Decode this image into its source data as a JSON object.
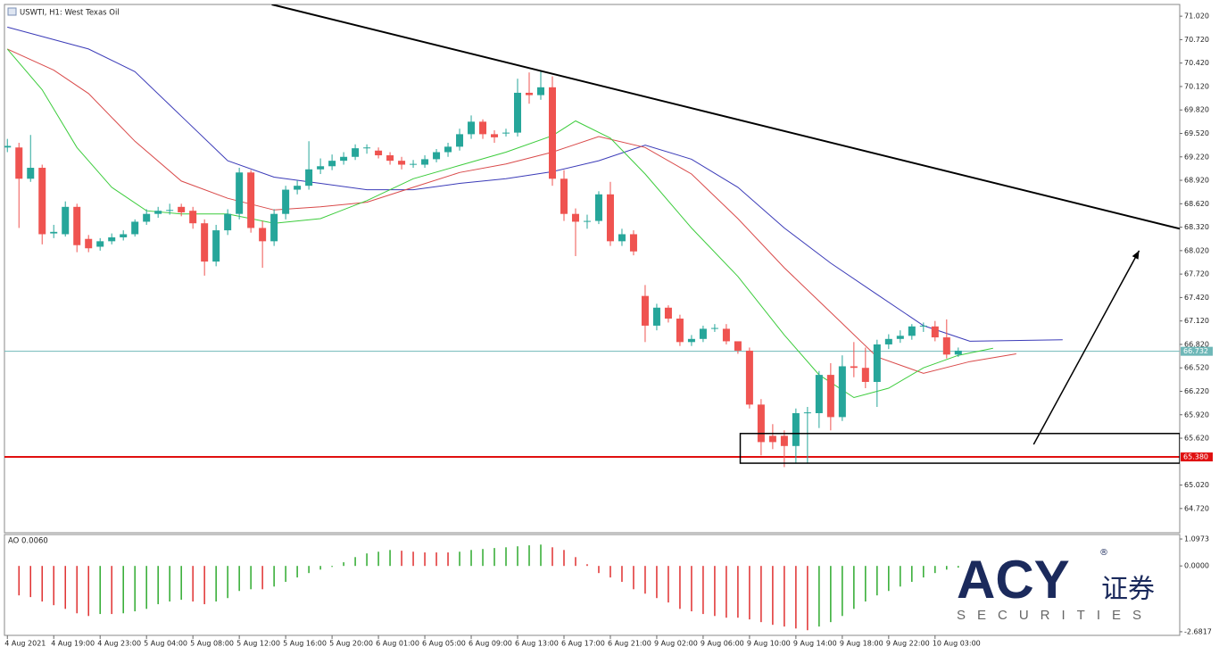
{
  "chart_data": [
    {
      "type": "candlestick",
      "title": "USWTI, H1: West Texas Oil",
      "up_color": "#26a69a",
      "down_color": "#ef5350",
      "xlim": [
        -0.25,
        101.1
      ],
      "ylim": [
        64.41,
        71.17
      ],
      "open": [
        69.34,
        69.34,
        68.94,
        69.08,
        68.24,
        68.23,
        68.58,
        68.17,
        68.07,
        68.14,
        68.19,
        68.23,
        68.39,
        68.49,
        68.53,
        68.58,
        68.53,
        68.37,
        67.88,
        68.28,
        68.49,
        69.02,
        68.31,
        68.14,
        68.49,
        68.8,
        68.85,
        69.06,
        69.1,
        69.17,
        69.22,
        69.33,
        69.3,
        69.24,
        69.17,
        69.12,
        69.12,
        69.19,
        69.28,
        69.35,
        69.51,
        69.67,
        69.51,
        69.52,
        69.53,
        70.04,
        70.01,
        70.11,
        68.94,
        68.49,
        68.39,
        68.4,
        68.74,
        68.14,
        68.23,
        67.44,
        67.06,
        67.29,
        67.15,
        66.85,
        66.89,
        67.02,
        67.02,
        66.86,
        66.74,
        66.05,
        65.65,
        65.65,
        65.52,
        65.94,
        65.94,
        66.43,
        65.89,
        66.54,
        66.52,
        66.34,
        66.82,
        66.89,
        66.93,
        67.05,
        67.05,
        66.91,
        66.69
      ],
      "high": [
        69.45,
        69.4,
        69.5,
        69.12,
        68.35,
        68.65,
        68.62,
        68.22,
        68.18,
        68.24,
        68.28,
        68.42,
        68.55,
        68.58,
        68.62,
        68.62,
        68.58,
        68.42,
        68.35,
        68.55,
        69.08,
        69.05,
        68.4,
        68.55,
        68.85,
        68.92,
        69.42,
        69.2,
        69.25,
        69.28,
        69.38,
        69.38,
        69.34,
        69.28,
        69.22,
        69.18,
        69.24,
        69.32,
        69.4,
        69.58,
        69.75,
        69.7,
        69.56,
        69.58,
        70.22,
        70.3,
        70.32,
        70.25,
        69.05,
        68.56,
        68.48,
        68.78,
        68.9,
        68.3,
        68.28,
        67.58,
        67.34,
        67.32,
        67.2,
        66.94,
        67.06,
        67.08,
        67.08,
        66.8,
        66.78,
        66.12,
        65.8,
        65.72,
        66.0,
        66.02,
        66.48,
        66.58,
        66.68,
        66.85,
        66.78,
        66.88,
        66.95,
        67.0,
        67.08,
        67.1,
        67.12,
        67.14,
        66.78
      ],
      "low": [
        69.28,
        68.31,
        68.9,
        68.1,
        68.18,
        68.2,
        68.0,
        68.0,
        68.02,
        68.1,
        68.15,
        68.2,
        68.35,
        68.44,
        68.48,
        68.46,
        68.3,
        67.7,
        67.82,
        68.22,
        68.42,
        68.25,
        67.8,
        68.08,
        68.42,
        68.74,
        68.8,
        69.0,
        69.05,
        69.12,
        69.18,
        69.26,
        69.2,
        69.12,
        69.06,
        69.08,
        69.08,
        69.15,
        69.22,
        69.3,
        69.45,
        69.45,
        69.4,
        69.48,
        69.48,
        69.9,
        69.95,
        68.85,
        68.4,
        67.95,
        68.3,
        68.36,
        68.08,
        68.08,
        67.96,
        66.85,
        67.0,
        67.1,
        66.8,
        66.8,
        66.85,
        66.98,
        66.82,
        66.7,
        66.0,
        65.4,
        65.48,
        65.25,
        65.3,
        65.3,
        65.75,
        65.72,
        65.84,
        66.4,
        66.26,
        66.02,
        66.76,
        66.84,
        66.88,
        66.98,
        66.86,
        66.64,
        66.66
      ],
      "close": [
        69.36,
        68.94,
        69.08,
        68.23,
        68.26,
        68.58,
        68.09,
        68.05,
        68.14,
        68.19,
        68.23,
        68.39,
        68.49,
        68.53,
        68.54,
        68.51,
        68.37,
        67.88,
        68.28,
        68.49,
        69.02,
        68.31,
        68.14,
        68.49,
        68.8,
        68.85,
        69.06,
        69.1,
        69.17,
        69.22,
        69.33,
        69.34,
        69.24,
        69.17,
        69.12,
        69.13,
        69.19,
        69.28,
        69.35,
        69.51,
        69.67,
        69.51,
        69.47,
        69.53,
        70.04,
        70.01,
        70.11,
        68.94,
        68.49,
        68.39,
        68.4,
        68.74,
        68.14,
        68.23,
        68.01,
        67.06,
        67.29,
        67.15,
        66.85,
        66.89,
        67.02,
        67.03,
        66.86,
        66.74,
        66.05,
        65.57,
        65.57,
        65.52,
        65.94,
        65.95,
        66.43,
        65.89,
        66.54,
        66.52,
        66.34,
        66.82,
        66.89,
        66.93,
        67.05,
        67.06,
        66.91,
        66.69,
        66.74
      ],
      "series": [
        {
          "color": "#3b3bb8",
          "x": [
            0,
            7,
            11,
            15,
            19,
            23,
            27,
            31,
            35,
            39,
            43,
            47,
            51,
            55,
            59,
            63,
            67,
            71,
            75,
            79,
            83,
            91
          ],
          "values": [
            70.88,
            70.6,
            70.31,
            69.74,
            69.17,
            68.96,
            68.88,
            68.8,
            68.8,
            68.88,
            68.94,
            69.03,
            69.17,
            69.37,
            69.19,
            68.83,
            68.31,
            67.86,
            67.46,
            67.06,
            66.86,
            66.88
          ]
        },
        {
          "color": "#d94a4a",
          "x": [
            0,
            4,
            7,
            11,
            15,
            19,
            23,
            27,
            31,
            35,
            39,
            43,
            47,
            51,
            55,
            59,
            63,
            67,
            71,
            75,
            79,
            83,
            87
          ],
          "values": [
            70.6,
            70.33,
            70.03,
            69.42,
            68.91,
            68.69,
            68.54,
            68.58,
            68.64,
            68.83,
            69.02,
            69.13,
            69.28,
            69.48,
            69.34,
            69.0,
            68.43,
            67.8,
            67.23,
            66.66,
            66.45,
            66.6,
            66.7
          ]
        },
        {
          "color": "#3ccc3c",
          "x": [
            0,
            3,
            6,
            9,
            12,
            15,
            19,
            23,
            27,
            31,
            35,
            39,
            43,
            47,
            49,
            52,
            55,
            59,
            63,
            67,
            70,
            73,
            76,
            79,
            82,
            85
          ],
          "values": [
            70.6,
            70.08,
            69.34,
            68.83,
            68.53,
            68.49,
            68.49,
            68.37,
            68.43,
            68.66,
            68.94,
            69.11,
            69.28,
            69.49,
            69.68,
            69.46,
            69.0,
            68.31,
            67.69,
            66.94,
            66.43,
            66.14,
            66.26,
            66.52,
            66.68,
            66.77
          ]
        }
      ],
      "price_lines": [
        {
          "value": 66.732,
          "label": "66.732",
          "color": "#6fb8b8"
        },
        {
          "value": 65.38,
          "label": "65.380",
          "color": "#e01010"
        }
      ],
      "trendline": {
        "x": [
          22.8,
          101.1
        ],
        "values": [
          71.17,
          68.3
        ]
      },
      "rectangle": {
        "x": [
          63.2,
          101.1
        ],
        "values": [
          65.68,
          65.3
        ]
      },
      "arrow": {
        "x": [
          88.5,
          97.6
        ],
        "values": [
          65.54,
          68.02
        ]
      },
      "yticks": [
        {
          "value": 71.02,
          "label": "71.020"
        },
        {
          "value": 70.72,
          "label": "70.720"
        },
        {
          "value": 70.42,
          "label": "70.420"
        },
        {
          "value": 70.12,
          "label": "70.120"
        },
        {
          "value": 69.82,
          "label": "69.820"
        },
        {
          "value": 69.52,
          "label": "69.520"
        },
        {
          "value": 69.22,
          "label": "69.220"
        },
        {
          "value": 68.92,
          "label": "68.920"
        },
        {
          "value": 68.62,
          "label": "68.620"
        },
        {
          "value": 68.32,
          "label": "68.320"
        },
        {
          "value": 68.02,
          "label": "68.020"
        },
        {
          "value": 67.72,
          "label": "67.720"
        },
        {
          "value": 67.42,
          "label": "67.420"
        },
        {
          "value": 67.12,
          "label": "67.120"
        },
        {
          "value": 66.82,
          "label": "66.820"
        },
        {
          "value": 66.52,
          "label": "66.520"
        },
        {
          "value": 66.22,
          "label": "66.220"
        },
        {
          "value": 65.92,
          "label": "65.920"
        },
        {
          "value": 65.62,
          "label": "65.620"
        },
        {
          "value": 65.02,
          "label": "65.020"
        },
        {
          "value": 64.72,
          "label": "64.720"
        }
      ],
      "xticks": [
        {
          "value": 0,
          "label": "4 Aug 2021"
        },
        {
          "value": 4,
          "label": "4 Aug 19:00"
        },
        {
          "value": 8,
          "label": "4 Aug 23:00"
        },
        {
          "value": 12,
          "label": "5 Aug 04:00"
        },
        {
          "value": 16,
          "label": "5 Aug 08:00"
        },
        {
          "value": 20,
          "label": "5 Aug 12:00"
        },
        {
          "value": 24,
          "label": "5 Aug 16:00"
        },
        {
          "value": 28,
          "label": "5 Aug 20:00"
        },
        {
          "value": 32,
          "label": "6 Aug 01:00"
        },
        {
          "value": 36,
          "label": "6 Aug 05:00"
        },
        {
          "value": 40,
          "label": "6 Aug 09:00"
        },
        {
          "value": 44,
          "label": "6 Aug 13:00"
        },
        {
          "value": 48,
          "label": "6 Aug 17:00"
        },
        {
          "value": 52,
          "label": "6 Aug 21:00"
        },
        {
          "value": 56,
          "label": "9 Aug 02:00"
        },
        {
          "value": 60,
          "label": "9 Aug 06:00"
        },
        {
          "value": 64,
          "label": "9 Aug 10:00"
        },
        {
          "value": 68,
          "label": "9 Aug 14:00"
        },
        {
          "value": 72,
          "label": "9 Aug 18:00"
        },
        {
          "value": 76,
          "label": "9 Aug 22:00"
        },
        {
          "value": 80,
          "label": "10 Aug 03:00"
        }
      ]
    },
    {
      "type": "bar",
      "title": "AO 0.0060",
      "up_color": "#2eaa2e",
      "down_color": "#e03030",
      "xlim": [
        -0.25,
        101.1
      ],
      "ylim": [
        -2.83,
        1.28
      ],
      "values": [
        null,
        -1.2,
        -1.27,
        -1.45,
        -1.6,
        -1.75,
        -1.93,
        -2.04,
        -1.96,
        -1.96,
        -1.93,
        -1.85,
        -1.75,
        -1.56,
        -1.45,
        -1.38,
        -1.45,
        -1.56,
        -1.45,
        -1.31,
        -1.02,
        -0.95,
        -0.95,
        -0.84,
        -0.65,
        -0.47,
        -0.29,
        -0.15,
        -0.04,
        0.15,
        0.36,
        0.51,
        0.58,
        0.65,
        0.62,
        0.58,
        0.55,
        0.55,
        0.55,
        0.58,
        0.65,
        0.69,
        0.73,
        0.76,
        0.8,
        0.84,
        0.87,
        0.76,
        0.65,
        0.36,
        0.07,
        -0.29,
        -0.47,
        -0.65,
        -0.95,
        -1.13,
        -1.31,
        -1.49,
        -1.75,
        -1.85,
        -1.96,
        -2.04,
        -2.11,
        -2.11,
        -2.18,
        -2.29,
        -2.4,
        -2.47,
        -2.55,
        -2.62,
        -2.47,
        -2.29,
        -2.04,
        -1.75,
        -1.45,
        -1.2,
        -1.02,
        -0.84,
        -0.65,
        -0.47,
        -0.29,
        -0.15,
        -0.07
      ],
      "yticks": [
        {
          "value": 1.0973,
          "label": "1.0973"
        },
        {
          "value": 0,
          "label": "0.0000"
        },
        {
          "value": -2.6817,
          "label": "-2.6817"
        }
      ]
    }
  ],
  "logo": {
    "brand": "ACY",
    "registered": "®",
    "chinese": "证券",
    "tagline": "SECURITIES"
  }
}
